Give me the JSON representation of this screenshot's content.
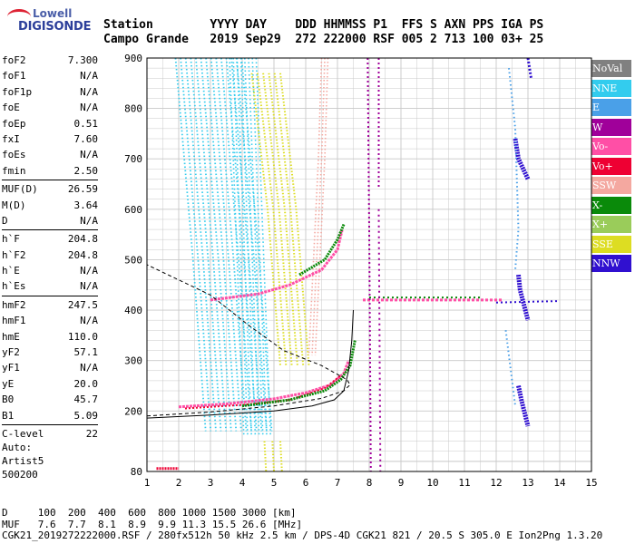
{
  "logo": {
    "top": "Lowell",
    "bottom": "DIGISONDE"
  },
  "header": {
    "labels": "Station        YYYY DAY    DDD HHMMSS P1  FFS S AXN PPS IGA PS",
    "values": "Campo Grande   2019 Sep29  272 222000 RSF 005 2 713 100 03+ 25"
  },
  "params": {
    "group1": [
      {
        "k": "foF2",
        "v": "7.300"
      },
      {
        "k": "foF1",
        "v": "N/A"
      },
      {
        "k": "foF1p",
        "v": "N/A"
      },
      {
        "k": "foE",
        "v": "N/A"
      },
      {
        "k": "foEp",
        "v": "0.51"
      },
      {
        "k": "fxI",
        "v": "7.60"
      },
      {
        "k": "foEs",
        "v": "N/A"
      },
      {
        "k": "fmin",
        "v": "2.50"
      }
    ],
    "group2": [
      {
        "k": "MUF(D)",
        "v": "26.59"
      },
      {
        "k": "M(D)",
        "v": "3.64"
      },
      {
        "k": "D",
        "v": "N/A"
      }
    ],
    "group3": [
      {
        "k": "h`F",
        "v": "204.8"
      },
      {
        "k": "h`F2",
        "v": "204.8"
      },
      {
        "k": "h`E",
        "v": "N/A"
      },
      {
        "k": "h`Es",
        "v": "N/A"
      }
    ],
    "group4": [
      {
        "k": "hmF2",
        "v": "247.5"
      },
      {
        "k": "hmF1",
        "v": "N/A"
      },
      {
        "k": "hmE",
        "v": "110.0"
      },
      {
        "k": "yF2",
        "v": "57.1"
      },
      {
        "k": "yF1",
        "v": "N/A"
      },
      {
        "k": "yE",
        "v": "20.0"
      },
      {
        "k": "B0",
        "v": "45.7"
      },
      {
        "k": "B1",
        "v": "5.09"
      }
    ],
    "group5": [
      {
        "k": "C-level",
        "v": "22"
      }
    ]
  },
  "auto": {
    "line1": "Auto:",
    "line2": "Artist5",
    "line3": "500200"
  },
  "legend": [
    {
      "label": "NoVal",
      "color": "#808080"
    },
    {
      "label": "NNE",
      "color": "#33ccee"
    },
    {
      "label": "E",
      "color": "#4aa0e8"
    },
    {
      "label": "W",
      "color": "#a0009a"
    },
    {
      "label": "Vo-",
      "color": "#ff4fa6"
    },
    {
      "label": "Vo+",
      "color": "#ee0033"
    },
    {
      "label": "SSW",
      "color": "#f4a8a0"
    },
    {
      "label": "X-",
      "color": "#0a8a0a"
    },
    {
      "label": "X+",
      "color": "#9acc5a"
    },
    {
      "label": "SSE",
      "color": "#dddd22"
    },
    {
      "label": "NNW",
      "color": "#3010d0"
    }
  ],
  "plot": {
    "x_ticks": [
      "1",
      "2",
      "3",
      "4",
      "5",
      "6",
      "7",
      "8",
      "9",
      "10",
      "11",
      "12",
      "13",
      "14",
      "15"
    ],
    "y_ticks": [
      "80",
      "200",
      "300",
      "400",
      "500",
      "600",
      "700",
      "800",
      "900"
    ]
  },
  "footer": {
    "line1": "D     100  200  400  600  800 1000 1500 3000 [km]",
    "line2": "MUF   7.6  7.7  8.1  8.9  9.9 11.3 15.5 26.6 [MHz]",
    "line3": "CGK21_2019272222000.RSF / 280fx512h 50 kHz 2.5 km / DPS-4D CGK21 821 / 20.5 S 305.0 E Ion2Png 1.3.20"
  }
}
